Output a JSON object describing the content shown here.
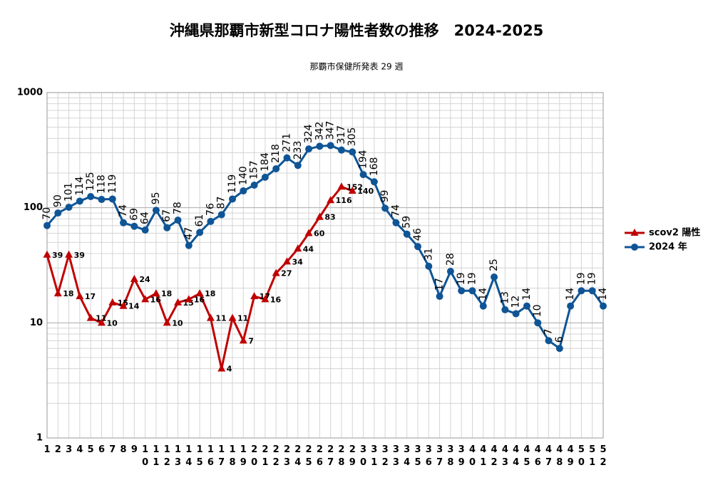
{
  "chart_data": {
    "type": "line",
    "title": "沖縄県那覇市新型コロナ陽性者数の推移　2024-2025",
    "subtitle": "那覇市保健所発表 29 週",
    "categories": [
      "1",
      "2",
      "3",
      "4",
      "5",
      "6",
      "7",
      "8",
      "9",
      "10",
      "11",
      "12",
      "13",
      "14",
      "15",
      "16",
      "17",
      "18",
      "19",
      "20",
      "21",
      "22",
      "23",
      "24",
      "25",
      "26",
      "27",
      "28",
      "29",
      "30",
      "31",
      "32",
      "33",
      "34",
      "35",
      "36",
      "37",
      "38",
      "39",
      "40",
      "41",
      "42",
      "43",
      "44",
      "45",
      "46",
      "47",
      "48",
      "49",
      "50",
      "51",
      "52"
    ],
    "series": [
      {
        "name": "scov2 陽性",
        "color": "#c00000",
        "marker": "triangle",
        "values": [
          39,
          18,
          39,
          17,
          11,
          10,
          15,
          14,
          24,
          16,
          18,
          10,
          15,
          16,
          18,
          11,
          4,
          11,
          7,
          17,
          16,
          27,
          34,
          44,
          60,
          83,
          116,
          152,
          140,
          null,
          null,
          null,
          null,
          null,
          null,
          null,
          null,
          null,
          null,
          null,
          null,
          null,
          null,
          null,
          null,
          null,
          null,
          null,
          null,
          null,
          null,
          null
        ]
      },
      {
        "name": "2024 年",
        "color": "#0f5596",
        "marker": "circle",
        "values": [
          70,
          90,
          101,
          114,
          125,
          118,
          119,
          74,
          69,
          64,
          95,
          67,
          78,
          47,
          61,
          76,
          87,
          119,
          140,
          157,
          184,
          218,
          271,
          233,
          324,
          342,
          347,
          317,
          305,
          194,
          168,
          99,
          74,
          59,
          46,
          31,
          17,
          28,
          19,
          19,
          14,
          25,
          13,
          12,
          14,
          10,
          7,
          6,
          14,
          19,
          19,
          14
        ]
      }
    ],
    "ylim": [
      1,
      1000
    ],
    "yticks": [
      1,
      10,
      100,
      1000
    ],
    "log_scale": true,
    "grid": true,
    "legend": "right"
  }
}
